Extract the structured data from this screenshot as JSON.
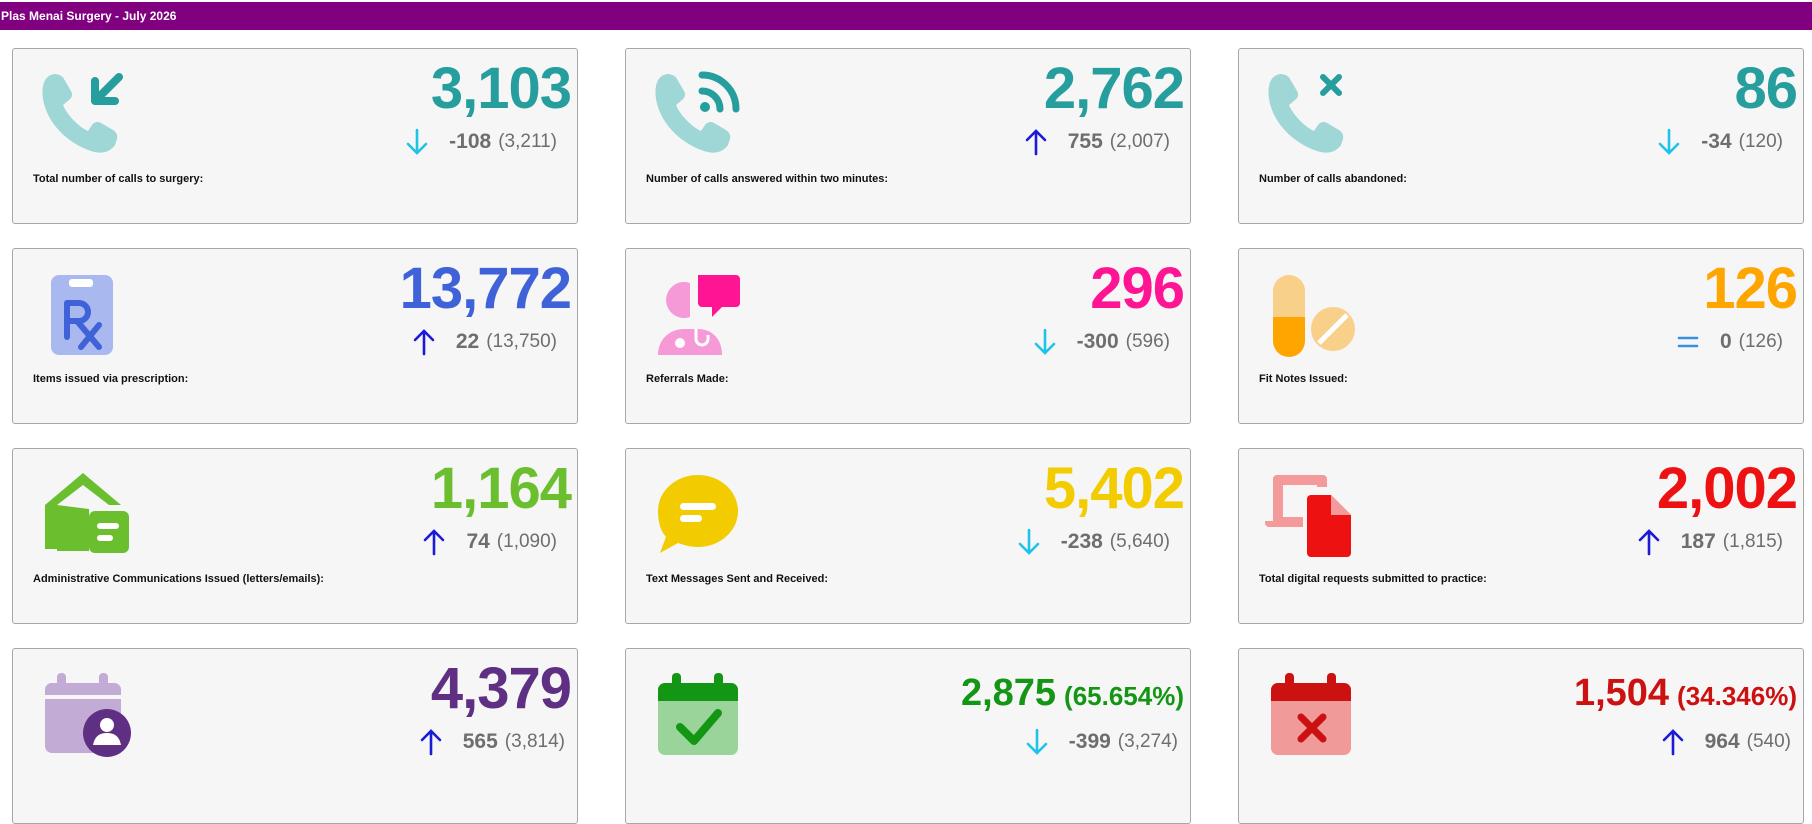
{
  "header": {
    "title": "Plas Menai Surgery - July 2026"
  },
  "cards": [
    {
      "label": "Total number of calls to surgery:",
      "value": "3,103",
      "change": "-108",
      "previous": "(3,211)",
      "trend": "down",
      "color": "#269e9e",
      "icon": "phone-incoming-icon"
    },
    {
      "label": "Number of calls answered within two minutes:",
      "value": "2,762",
      "change": "755",
      "previous": "(2,007)",
      "trend": "up",
      "color": "#269e9e",
      "icon": "phone-answered-icon"
    },
    {
      "label": "Number of calls abandoned:",
      "value": "86",
      "change": "-34",
      "previous": "(120)",
      "trend": "down",
      "color": "#269e9e",
      "icon": "phone-missed-icon"
    },
    {
      "label": "Items issued via prescription:",
      "value": "13,772",
      "change": "22",
      "previous": "(13,750)",
      "trend": "up",
      "color": "#3f62d8",
      "icon": "prescription-icon"
    },
    {
      "label": "Referrals Made:",
      "value": "296",
      "change": "-300",
      "previous": "(596)",
      "trend": "down",
      "color": "#ff1493",
      "icon": "doctor-referral-icon"
    },
    {
      "label": "Fit Notes Issued:",
      "value": "126",
      "change": "0",
      "previous": "(126)",
      "trend": "equal",
      "color": "#ffa500",
      "icon": "pills-icon"
    },
    {
      "label": "Administrative Communications Issued (letters/emails):",
      "value": "1,164",
      "change": "74",
      "previous": "(1,090)",
      "trend": "up",
      "color": "#6bbf2f",
      "icon": "envelope-letter-icon"
    },
    {
      "label": "Text Messages Sent and Received:",
      "value": "5,402",
      "change": "-238",
      "previous": "(5,640)",
      "trend": "down",
      "color": "#f2cc00",
      "icon": "chat-bubble-icon"
    },
    {
      "label": "Total digital requests submitted to practice:",
      "value": "2,002",
      "change": "187",
      "previous": "(1,815)",
      "trend": "up",
      "color": "#ee1111",
      "icon": "digital-request-icon"
    },
    {
      "label": "",
      "value": "4,379",
      "percent": "",
      "change": "565",
      "previous": "(3,814)",
      "trend": "up",
      "color": "#5e2f82",
      "icon": "calendar-user-icon"
    },
    {
      "label": "",
      "value": "2,875",
      "percent": "(65.654%)",
      "change": "-399",
      "previous": "(3,274)",
      "trend": "down",
      "color": "#139613",
      "icon": "calendar-check-icon"
    },
    {
      "label": "",
      "value": "1,504",
      "percent": "(34.346%)",
      "change": "964",
      "previous": "(540)",
      "trend": "up",
      "color": "#cc1111",
      "icon": "calendar-cross-icon"
    }
  ],
  "trend_colors": {
    "up": "#1a1ad8",
    "down": "#1ec3e8",
    "equal": "#3a8fe0"
  }
}
